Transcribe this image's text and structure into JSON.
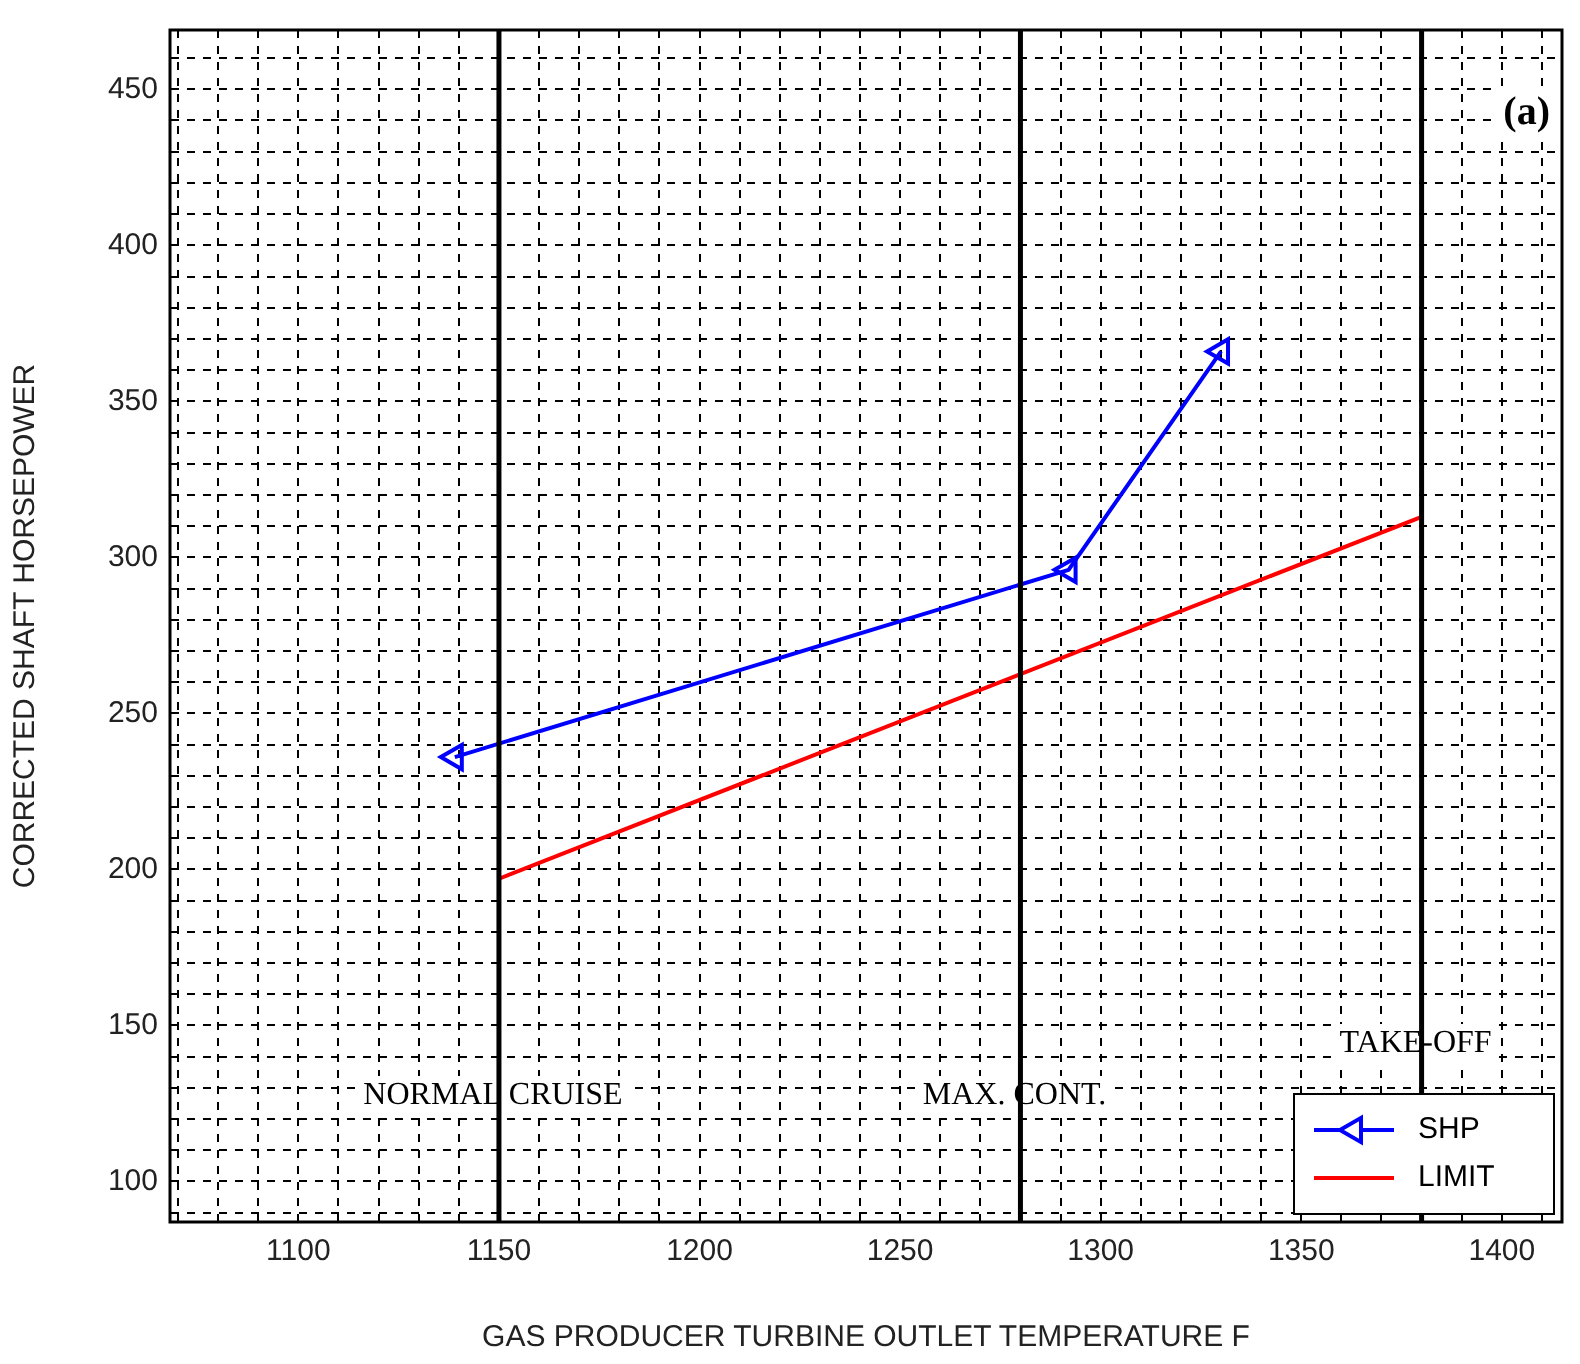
{
  "chart_data": {
    "type": "line",
    "xlabel": "GAS PRODUCER TURBINE OUTLET TEMPERATURE F",
    "ylabel": "CORRECTED SHAFT HORSEPOWER",
    "xlim": [
      1068,
      1415
    ],
    "ylim": [
      87,
      469
    ],
    "xticks": [
      {
        "value": 1070,
        "label": null
      },
      {
        "value": 1080,
        "label": null
      },
      {
        "value": 1090,
        "label": null
      },
      1100,
      {
        "value": 1110,
        "label": null
      },
      {
        "value": 1120,
        "label": null
      },
      {
        "value": 1130,
        "label": null
      },
      {
        "value": 1140,
        "label": null
      },
      1150,
      {
        "value": 1160,
        "label": null
      },
      {
        "value": 1170,
        "label": null
      },
      {
        "value": 1180,
        "label": null
      },
      {
        "value": 1190,
        "label": null
      },
      1200,
      {
        "value": 1210,
        "label": null
      },
      {
        "value": 1220,
        "label": null
      },
      {
        "value": 1230,
        "label": null
      },
      {
        "value": 1240,
        "label": null
      },
      1250,
      {
        "value": 1260,
        "label": null
      },
      {
        "value": 1270,
        "label": null
      },
      {
        "value": 1290,
        "label": null
      },
      1300,
      {
        "value": 1310,
        "label": null
      },
      {
        "value": 1320,
        "label": null
      },
      {
        "value": 1330,
        "label": null
      },
      {
        "value": 1340,
        "label": null
      },
      1350,
      {
        "value": 1360,
        "label": null
      },
      {
        "value": 1370,
        "label": null
      },
      {
        "value": 1390,
        "label": null
      },
      1400,
      {
        "value": 1410,
        "label": null
      }
    ],
    "yticks": [
      {
        "value": 90,
        "label": null
      },
      100,
      {
        "value": 110,
        "label": null
      },
      {
        "value": 120,
        "label": null
      },
      {
        "value": 130,
        "label": null
      },
      {
        "value": 140,
        "label": null
      },
      150,
      {
        "value": 160,
        "label": null
      },
      {
        "value": 170,
        "label": null
      },
      {
        "value": 180,
        "label": null
      },
      {
        "value": 190,
        "label": null
      },
      200,
      {
        "value": 210,
        "label": null
      },
      {
        "value": 220,
        "label": null
      },
      {
        "value": 230,
        "label": null
      },
      {
        "value": 240,
        "label": null
      },
      250,
      {
        "value": 260,
        "label": null
      },
      {
        "value": 270,
        "label": null
      },
      {
        "value": 280,
        "label": null
      },
      {
        "value": 290,
        "label": null
      },
      300,
      {
        "value": 310,
        "label": null
      },
      {
        "value": 320,
        "label": null
      },
      {
        "value": 330,
        "label": null
      },
      {
        "value": 340,
        "label": null
      },
      350,
      {
        "value": 360,
        "label": null
      },
      {
        "value": 370,
        "label": null
      },
      {
        "value": 380,
        "label": null
      },
      {
        "value": 390,
        "label": null
      },
      400,
      {
        "value": 410,
        "label": null
      },
      {
        "value": 420,
        "label": null
      },
      {
        "value": 430,
        "label": null
      },
      {
        "value": 440,
        "label": null
      },
      450,
      {
        "value": 460,
        "label": null
      }
    ],
    "series": [
      {
        "name": "SHP",
        "color": "#0000ff",
        "x": [
          1139,
          1292,
          1330
        ],
        "values": [
          236,
          296,
          366
        ],
        "marker": "triangle"
      },
      {
        "name": "LIMIT",
        "color": "#ff0000",
        "x": [
          1150,
          1380
        ],
        "values": [
          197,
          313
        ],
        "marker": "none"
      }
    ],
    "ref_lines": [
      {
        "axis": "x",
        "value": 1150,
        "label": "NORMAL CRUISE",
        "color": "#000000"
      },
      {
        "axis": "x",
        "value": 1280,
        "label": "MAX. CONT.",
        "color": "#000000"
      },
      {
        "axis": "x",
        "value": 1380,
        "label": "TAKE-OFF",
        "color": "#000000"
      }
    ],
    "annotations": [
      "(a)"
    ],
    "grid": true,
    "legend": "bottom right",
    "line_style": "solid"
  }
}
